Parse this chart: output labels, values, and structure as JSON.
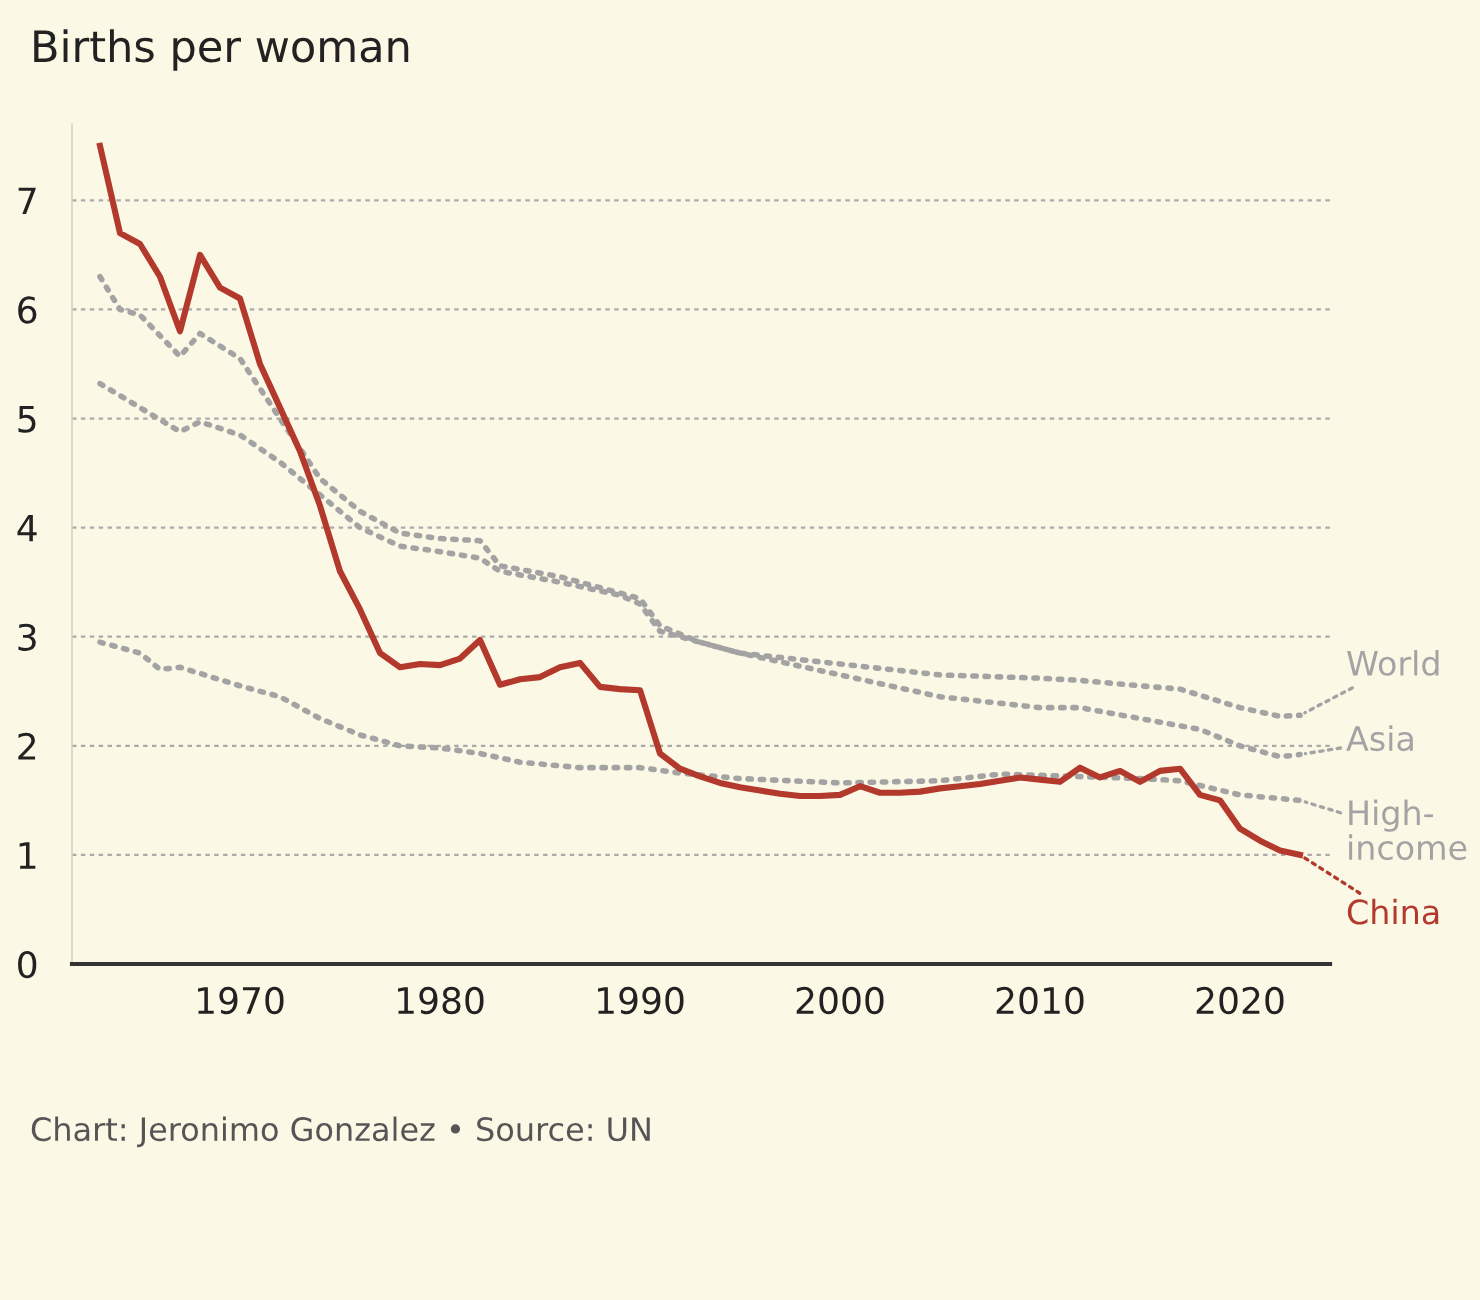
{
  "chart_data": {
    "type": "line",
    "title": "Births per woman",
    "annotations": [
      "Chart: Jeronimo Gonzalez • Source: UN"
    ],
    "xlim": [
      1961.6,
      2024.5
    ],
    "xticks": [
      1970,
      1980,
      1990,
      2000,
      2010,
      2020
    ],
    "ylim": [
      0,
      7.7
    ],
    "yticks": [
      0,
      1,
      2,
      3,
      4,
      5,
      6,
      7
    ],
    "grid": "y",
    "legend": "right",
    "series": [
      {
        "name": "World",
        "color": "#a3a3a3",
        "line_style": "dotted",
        "x": [
          1963,
          1965,
          1967,
          1968,
          1970,
          1972,
          1974,
          1976,
          1978,
          1980,
          1982,
          1983,
          1986,
          1989,
          1990,
          1991,
          1993,
          1995,
          2000,
          2005,
          2010,
          2012,
          2015,
          2017,
          2020,
          2022,
          2023
        ],
        "values": [
          5.32,
          5.1,
          4.88,
          4.97,
          4.85,
          4.6,
          4.3,
          4.0,
          3.83,
          3.78,
          3.72,
          3.6,
          3.5,
          3.38,
          3.3,
          3.05,
          2.95,
          2.85,
          2.75,
          2.65,
          2.62,
          2.6,
          2.55,
          2.52,
          2.35,
          2.27,
          2.28
        ]
      },
      {
        "name": "Asia",
        "color": "#a3a3a3",
        "line_style": "dotted",
        "x": [
          1963,
          1964,
          1965,
          1967,
          1968,
          1970,
          1972,
          1974,
          1976,
          1978,
          1980,
          1982,
          1983,
          1986,
          1989,
          1990,
          1991,
          1993,
          1995,
          2000,
          2005,
          2010,
          2012,
          2015,
          2018,
          2020,
          2022,
          2023
        ],
        "values": [
          6.3,
          6.0,
          5.95,
          5.57,
          5.78,
          5.55,
          5.0,
          4.45,
          4.15,
          3.95,
          3.9,
          3.88,
          3.65,
          3.55,
          3.4,
          3.35,
          3.1,
          2.95,
          2.85,
          2.65,
          2.45,
          2.35,
          2.35,
          2.25,
          2.15,
          2.0,
          1.9,
          1.92
        ]
      },
      {
        "name": "High-income",
        "color": "#a3a3a3",
        "line_style": "dotted",
        "x": [
          1963,
          1965,
          1966,
          1967,
          1970,
          1972,
          1974,
          1976,
          1978,
          1980,
          1982,
          1984,
          1987,
          1990,
          1992,
          1995,
          2000,
          2005,
          2008,
          2010,
          2015,
          2017,
          2020,
          2023
        ],
        "values": [
          2.95,
          2.85,
          2.7,
          2.72,
          2.55,
          2.45,
          2.25,
          2.1,
          2.0,
          1.98,
          1.93,
          1.85,
          1.8,
          1.8,
          1.75,
          1.7,
          1.66,
          1.68,
          1.74,
          1.73,
          1.7,
          1.68,
          1.55,
          1.5
        ]
      },
      {
        "name": "China",
        "color": "#b2392c",
        "line_style": "solid",
        "x": [
          1963,
          1964,
          1965,
          1966,
          1967,
          1968,
          1969,
          1970,
          1971,
          1972,
          1973,
          1974,
          1975,
          1976,
          1977,
          1978,
          1979,
          1980,
          1981,
          1982,
          1983,
          1984,
          1985,
          1986,
          1987,
          1988,
          1989,
          1990,
          1991,
          1992,
          1993,
          1994,
          1995,
          1996,
          1997,
          1998,
          1999,
          2000,
          2001,
          2002,
          2003,
          2004,
          2005,
          2006,
          2007,
          2008,
          2009,
          2010,
          2011,
          2012,
          2013,
          2014,
          2015,
          2016,
          2017,
          2018,
          2019,
          2020,
          2021,
          2022,
          2023
        ],
        "values": [
          7.5,
          6.7,
          6.6,
          6.3,
          5.8,
          6.5,
          6.2,
          6.1,
          5.5,
          5.1,
          4.7,
          4.2,
          3.6,
          3.25,
          2.85,
          2.72,
          2.75,
          2.74,
          2.8,
          2.97,
          2.56,
          2.61,
          2.63,
          2.72,
          2.76,
          2.54,
          2.52,
          2.51,
          1.93,
          1.79,
          1.72,
          1.66,
          1.62,
          1.59,
          1.56,
          1.54,
          1.54,
          1.55,
          1.63,
          1.57,
          1.57,
          1.58,
          1.61,
          1.63,
          1.65,
          1.68,
          1.71,
          1.69,
          1.67,
          1.8,
          1.71,
          1.77,
          1.67,
          1.77,
          1.79,
          1.55,
          1.5,
          1.24,
          1.13,
          1.04,
          1.0
        ]
      }
    ]
  }
}
